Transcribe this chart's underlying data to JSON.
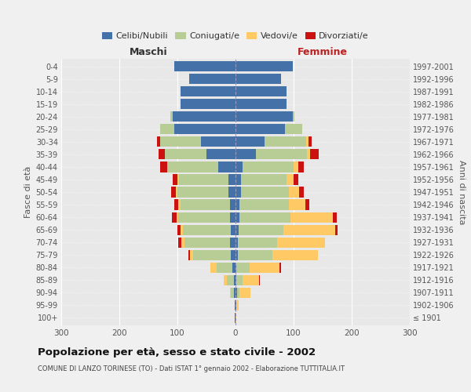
{
  "age_groups": [
    "100+",
    "95-99",
    "90-94",
    "85-89",
    "80-84",
    "75-79",
    "70-74",
    "65-69",
    "60-64",
    "55-59",
    "50-54",
    "45-49",
    "40-44",
    "35-39",
    "30-34",
    "25-29",
    "20-24",
    "15-19",
    "10-14",
    "5-9",
    "0-4"
  ],
  "birth_years": [
    "≤ 1901",
    "1902-1906",
    "1907-1911",
    "1912-1916",
    "1917-1921",
    "1922-1926",
    "1927-1931",
    "1932-1936",
    "1937-1941",
    "1942-1946",
    "1947-1951",
    "1952-1956",
    "1957-1961",
    "1962-1966",
    "1967-1971",
    "1972-1976",
    "1977-1981",
    "1982-1986",
    "1987-1991",
    "1992-1996",
    "1997-2001"
  ],
  "male": {
    "celibi": [
      1,
      1,
      3,
      3,
      5,
      8,
      10,
      8,
      10,
      10,
      12,
      12,
      30,
      50,
      60,
      105,
      108,
      95,
      95,
      80,
      105
    ],
    "coniugati": [
      0,
      1,
      5,
      12,
      28,
      65,
      78,
      82,
      88,
      85,
      88,
      85,
      88,
      72,
      70,
      25,
      4,
      0,
      0,
      0,
      0
    ],
    "vedovi": [
      0,
      0,
      2,
      5,
      10,
      5,
      5,
      5,
      3,
      3,
      3,
      3,
      0,
      0,
      0,
      0,
      0,
      0,
      0,
      0,
      0
    ],
    "divorziati": [
      0,
      0,
      0,
      0,
      0,
      3,
      5,
      5,
      8,
      7,
      8,
      8,
      12,
      10,
      5,
      0,
      0,
      0,
      0,
      0,
      0
    ]
  },
  "female": {
    "nubili": [
      0,
      1,
      3,
      2,
      2,
      4,
      4,
      5,
      7,
      7,
      9,
      10,
      12,
      35,
      50,
      85,
      98,
      88,
      88,
      78,
      98
    ],
    "coniugate": [
      0,
      0,
      4,
      10,
      22,
      60,
      68,
      78,
      88,
      85,
      83,
      78,
      88,
      88,
      72,
      30,
      4,
      0,
      0,
      0,
      0
    ],
    "vedove": [
      1,
      4,
      18,
      28,
      52,
      78,
      82,
      88,
      72,
      28,
      18,
      12,
      8,
      6,
      4,
      0,
      0,
      0,
      0,
      0,
      0
    ],
    "divorziate": [
      0,
      0,
      0,
      2,
      2,
      0,
      0,
      5,
      7,
      7,
      8,
      8,
      10,
      14,
      5,
      0,
      0,
      0,
      0,
      0,
      0
    ]
  },
  "colors": {
    "celibi": "#4472a8",
    "coniugati": "#b8cc96",
    "vedovi": "#ffc966",
    "divorziati": "#cc1111"
  },
  "xlim": 300,
  "title": "Popolazione per età, sesso e stato civile - 2002",
  "subtitle": "COMUNE DI LANZO TORINESE (TO) - Dati ISTAT 1° gennaio 2002 - Elaborazione TUTTITALIA.IT",
  "ylabel_left": "Fasce di età",
  "ylabel_right": "Anni di nascita",
  "xlabel_left": "Maschi",
  "xlabel_right": "Femmine",
  "background_color": "#f0f0f0",
  "plot_bg": "#e8e8e8",
  "grid_color": "#ffffff"
}
